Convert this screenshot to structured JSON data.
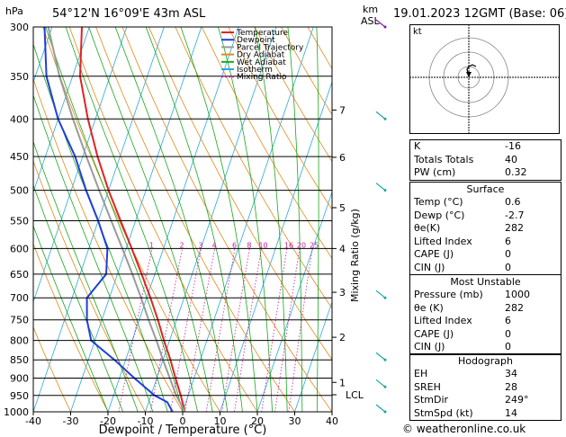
{
  "header": {
    "hpa_label": "hPa",
    "location": "54°12'N  16°09'E  43m  ASL",
    "km_label": "km",
    "asl_label": "ASL",
    "datetime": "19.01.2023  12GMT  (Base: 06)"
  },
  "axes": {
    "xlabel": "Dewpoint / Temperature (°C)",
    "mixing_label": "Mixing Ratio (g/kg)"
  },
  "legend": [
    {
      "label": "Temperature",
      "color": "#e52222"
    },
    {
      "label": "Dewpoint",
      "color": "#1f3fe0"
    },
    {
      "label": "Parcel Trajectory",
      "color": "#9a9a9a"
    },
    {
      "label": "Dry Adiabat",
      "color": "#e08a1a"
    },
    {
      "label": "Wet Adiabat",
      "color": "#1aa81a"
    },
    {
      "label": "Isotherm",
      "color": "#2aa8e0"
    },
    {
      "label": "Mixing Ratio",
      "color": "#d01aa0"
    }
  ],
  "chart_data": {
    "type": "line",
    "title": "",
    "xlabel": "Dewpoint / Temperature (°C)",
    "ylabel": "hPa",
    "x_ticks": [
      -40,
      -30,
      -20,
      -10,
      0,
      10,
      20,
      30,
      40
    ],
    "pressure_levels": [
      300,
      350,
      400,
      450,
      500,
      550,
      600,
      650,
      700,
      750,
      800,
      850,
      900,
      950,
      1000
    ],
    "km_levels": [
      {
        "label": "1",
        "p": 912
      },
      {
        "label": "2",
        "p": 792
      },
      {
        "label": "3",
        "p": 688
      },
      {
        "label": "4",
        "p": 600
      },
      {
        "label": "5",
        "p": 528
      },
      {
        "label": "6",
        "p": 451
      },
      {
        "label": "7",
        "p": 389
      }
    ],
    "lcl": {
      "label": "LCL",
      "p": 948
    },
    "mixing_ratio_labels": [
      "1",
      "2",
      "3",
      "4",
      "6",
      "8",
      "10",
      "16",
      "20",
      "25"
    ],
    "mixing_ratio_values": [
      1,
      2,
      3,
      4,
      6,
      8,
      10,
      16,
      20,
      25
    ],
    "series": [
      {
        "name": "Temperature",
        "p": [
          1000,
          950,
          900,
          850,
          800,
          750,
          700,
          650,
          600,
          550,
          500,
          450,
          400,
          350,
          300
        ],
        "t": [
          0.6,
          -2.0,
          -5.0,
          -8.0,
          -11.5,
          -15.0,
          -19.0,
          -23.5,
          -28.5,
          -34.0,
          -40.0,
          -46.0,
          -52.0,
          -58.0,
          -62.0
        ]
      },
      {
        "name": "Dewpoint",
        "p": [
          1000,
          970,
          950,
          900,
          850,
          800,
          750,
          700,
          650,
          600,
          550,
          500,
          450,
          400,
          350,
          300
        ],
        "t": [
          -2.7,
          -5.0,
          -9.0,
          -16.0,
          -23.0,
          -31.0,
          -34.0,
          -36.0,
          -33.0,
          -35.0,
          -40.0,
          -46.0,
          -52.0,
          -60.0,
          -67.0,
          -72.0
        ]
      },
      {
        "name": "Parcel Trajectory",
        "p": [
          1000,
          950,
          900,
          850,
          800,
          750,
          700,
          650,
          600,
          550,
          500,
          450,
          400,
          350,
          300
        ],
        "t": [
          0.6,
          -3.2,
          -6.5,
          -10.0,
          -13.5,
          -17.5,
          -21.5,
          -26.0,
          -31.0,
          -36.5,
          -42.5,
          -49.0,
          -56.0,
          -63.5,
          -71.0
        ]
      }
    ]
  },
  "indices": [
    {
      "label": "K",
      "value": "-16"
    },
    {
      "label": "Totals Totals",
      "value": "40"
    },
    {
      "label": "PW (cm)",
      "value": "0.32"
    }
  ],
  "surface": {
    "title": "Surface",
    "rows": [
      {
        "label": "Temp (°C)",
        "value": "0.6"
      },
      {
        "label": "Dewp (°C)",
        "value": "-2.7"
      },
      {
        "label": "θe(K)",
        "value": "282"
      },
      {
        "label": "Lifted Index",
        "value": "6"
      },
      {
        "label": "CAPE (J)",
        "value": "0"
      },
      {
        "label": "CIN (J)",
        "value": "0"
      }
    ]
  },
  "unstable": {
    "title": "Most Unstable",
    "rows": [
      {
        "label": "Pressure (mb)",
        "value": "1000"
      },
      {
        "label": "θe (K)",
        "value": "282"
      },
      {
        "label": "Lifted Index",
        "value": "6"
      },
      {
        "label": "CAPE (J)",
        "value": "0"
      },
      {
        "label": "CIN (J)",
        "value": "0"
      }
    ]
  },
  "hodograph": {
    "title": "Hodograph",
    "kt_label": "kt",
    "rows": [
      {
        "label": "EH",
        "value": "34"
      },
      {
        "label": "SREH",
        "value": "28"
      },
      {
        "label": "StmDir",
        "value": "249°"
      },
      {
        "label": "StmSpd (kt)",
        "value": "14"
      }
    ]
  },
  "footer": {
    "copyright": "© weatheronline.co.uk"
  }
}
